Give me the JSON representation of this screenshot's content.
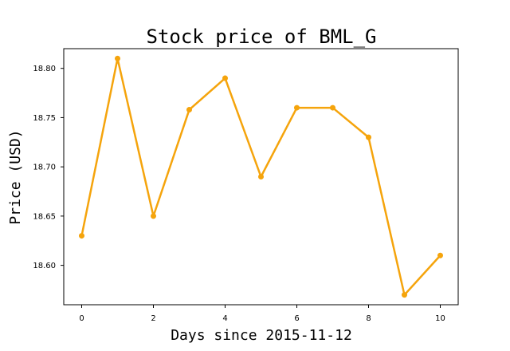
{
  "chart_data": {
    "type": "line",
    "title": "Stock price of BML_G",
    "xlabel": "Days since 2015-11-12",
    "ylabel": "Price (USD)",
    "x": [
      0,
      1,
      2,
      3,
      4,
      5,
      6,
      7,
      8,
      9,
      10
    ],
    "series": [
      {
        "values": [
          18.63,
          18.81,
          18.65,
          18.758,
          18.79,
          18.69,
          18.76,
          18.76,
          18.73,
          18.57,
          18.61
        ],
        "color": "#f5a40c"
      }
    ],
    "xlim": [
      -0.5,
      10.5
    ],
    "ylim": [
      18.56,
      18.82
    ],
    "xticks": [
      "0",
      "2",
      "4",
      "6",
      "8",
      "10"
    ],
    "yticks": [
      "18.60",
      "18.65",
      "18.70",
      "18.75",
      "18.80"
    ],
    "grid": false,
    "legend": "none"
  }
}
